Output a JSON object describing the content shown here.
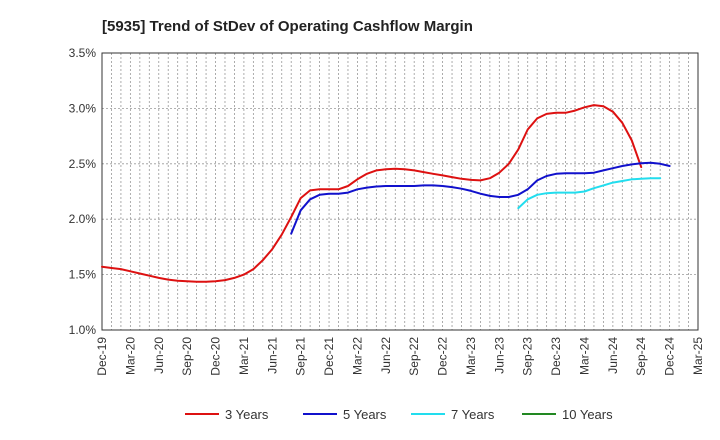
{
  "chart_data": {
    "type": "line",
    "title": "[5935]  Trend of StDev of Operating Cashflow Margin",
    "xlabel": "",
    "ylabel": "",
    "ylim": [
      1.0,
      3.5
    ],
    "y_ticks": [
      "1.0%",
      "1.5%",
      "2.0%",
      "2.5%",
      "3.0%",
      "3.5%"
    ],
    "y_tick_values": [
      1.0,
      1.5,
      2.0,
      2.5,
      3.0,
      3.5
    ],
    "x_ticks": [
      "Dec-19",
      "Mar-20",
      "Jun-20",
      "Sep-20",
      "Dec-20",
      "Mar-21",
      "Jun-21",
      "Sep-21",
      "Dec-21",
      "Mar-22",
      "Jun-22",
      "Sep-22",
      "Dec-22",
      "Mar-23",
      "Jun-23",
      "Sep-23",
      "Dec-23",
      "Mar-24",
      "Jun-24",
      "Sep-24",
      "Dec-24",
      "Mar-25"
    ],
    "grid": true,
    "legend_position": "bottom",
    "series": [
      {
        "name": "3 Years",
        "color": "#dd1111",
        "points": [
          [
            "Dec-19",
            1.57
          ],
          [
            "Jan-20",
            1.56
          ],
          [
            "Feb-20",
            1.55
          ],
          [
            "Mar-20",
            1.53
          ],
          [
            "Apr-20",
            1.51
          ],
          [
            "May-20",
            1.49
          ],
          [
            "Jun-20",
            1.47
          ],
          [
            "Jul-20",
            1.455
          ],
          [
            "Aug-20",
            1.445
          ],
          [
            "Sep-20",
            1.44
          ],
          [
            "Oct-20",
            1.435
          ],
          [
            "Nov-20",
            1.435
          ],
          [
            "Dec-20",
            1.44
          ],
          [
            "Jan-21",
            1.45
          ],
          [
            "Feb-21",
            1.47
          ],
          [
            "Mar-21",
            1.5
          ],
          [
            "Apr-21",
            1.55
          ],
          [
            "May-21",
            1.63
          ],
          [
            "Jun-21",
            1.73
          ],
          [
            "Jul-21",
            1.86
          ],
          [
            "Aug-21",
            2.02
          ],
          [
            "Sep-21",
            2.19
          ],
          [
            "Oct-21",
            2.26
          ],
          [
            "Nov-21",
            2.27
          ],
          [
            "Dec-21",
            2.27
          ],
          [
            "Jan-22",
            2.27
          ],
          [
            "Feb-22",
            2.3
          ],
          [
            "Mar-22",
            2.36
          ],
          [
            "Apr-22",
            2.41
          ],
          [
            "May-22",
            2.44
          ],
          [
            "Jun-22",
            2.45
          ],
          [
            "Jul-22",
            2.455
          ],
          [
            "Aug-22",
            2.45
          ],
          [
            "Sep-22",
            2.44
          ],
          [
            "Oct-22",
            2.425
          ],
          [
            "Nov-22",
            2.41
          ],
          [
            "Dec-22",
            2.395
          ],
          [
            "Jan-23",
            2.38
          ],
          [
            "Feb-23",
            2.365
          ],
          [
            "Mar-23",
            2.355
          ],
          [
            "Apr-23",
            2.35
          ],
          [
            "May-23",
            2.37
          ],
          [
            "Jun-23",
            2.42
          ],
          [
            "Jul-23",
            2.5
          ],
          [
            "Aug-23",
            2.63
          ],
          [
            "Sep-23",
            2.81
          ],
          [
            "Oct-23",
            2.91
          ],
          [
            "Nov-23",
            2.95
          ],
          [
            "Dec-23",
            2.96
          ],
          [
            "Jan-24",
            2.96
          ],
          [
            "Feb-24",
            2.98
          ],
          [
            "Mar-24",
            3.01
          ],
          [
            "Apr-24",
            3.03
          ],
          [
            "May-24",
            3.02
          ],
          [
            "Jun-24",
            2.97
          ],
          [
            "Jul-24",
            2.87
          ],
          [
            "Aug-24",
            2.71
          ],
          [
            "Sep-24",
            2.47
          ]
        ]
      },
      {
        "name": "5 Years",
        "color": "#1111cc",
        "points": [
          [
            "Aug-21",
            1.87
          ],
          [
            "Sep-21",
            2.08
          ],
          [
            "Oct-21",
            2.18
          ],
          [
            "Nov-21",
            2.22
          ],
          [
            "Dec-21",
            2.23
          ],
          [
            "Jan-22",
            2.23
          ],
          [
            "Feb-22",
            2.24
          ],
          [
            "Mar-22",
            2.27
          ],
          [
            "Apr-22",
            2.285
          ],
          [
            "May-22",
            2.295
          ],
          [
            "Jun-22",
            2.3
          ],
          [
            "Jul-22",
            2.3
          ],
          [
            "Aug-22",
            2.3
          ],
          [
            "Sep-22",
            2.3
          ],
          [
            "Oct-22",
            2.305
          ],
          [
            "Nov-22",
            2.305
          ],
          [
            "Dec-22",
            2.3
          ],
          [
            "Jan-23",
            2.29
          ],
          [
            "Feb-23",
            2.275
          ],
          [
            "Mar-23",
            2.255
          ],
          [
            "Apr-23",
            2.23
          ],
          [
            "May-23",
            2.21
          ],
          [
            "Jun-23",
            2.2
          ],
          [
            "Jul-23",
            2.2
          ],
          [
            "Aug-23",
            2.22
          ],
          [
            "Sep-23",
            2.27
          ],
          [
            "Oct-23",
            2.35
          ],
          [
            "Nov-23",
            2.39
          ],
          [
            "Dec-23",
            2.41
          ],
          [
            "Jan-24",
            2.415
          ],
          [
            "Feb-24",
            2.415
          ],
          [
            "Mar-24",
            2.415
          ],
          [
            "Apr-24",
            2.42
          ],
          [
            "May-24",
            2.44
          ],
          [
            "Jun-24",
            2.46
          ],
          [
            "Jul-24",
            2.48
          ],
          [
            "Aug-24",
            2.495
          ],
          [
            "Sep-24",
            2.505
          ],
          [
            "Oct-24",
            2.51
          ],
          [
            "Nov-24",
            2.5
          ],
          [
            "Dec-24",
            2.48
          ]
        ]
      },
      {
        "name": "7 Years",
        "color": "#22ddee",
        "points": [
          [
            "Aug-23",
            2.1
          ],
          [
            "Sep-23",
            2.18
          ],
          [
            "Oct-23",
            2.22
          ],
          [
            "Nov-23",
            2.235
          ],
          [
            "Dec-23",
            2.24
          ],
          [
            "Jan-24",
            2.24
          ],
          [
            "Feb-24",
            2.24
          ],
          [
            "Mar-24",
            2.25
          ],
          [
            "Apr-24",
            2.28
          ],
          [
            "May-24",
            2.305
          ],
          [
            "Jun-24",
            2.33
          ],
          [
            "Jul-24",
            2.345
          ],
          [
            "Aug-24",
            2.36
          ],
          [
            "Sep-24",
            2.365
          ],
          [
            "Oct-24",
            2.37
          ],
          [
            "Nov-24",
            2.37
          ]
        ]
      },
      {
        "name": "10 Years",
        "color": "#228822",
        "points": []
      }
    ]
  }
}
